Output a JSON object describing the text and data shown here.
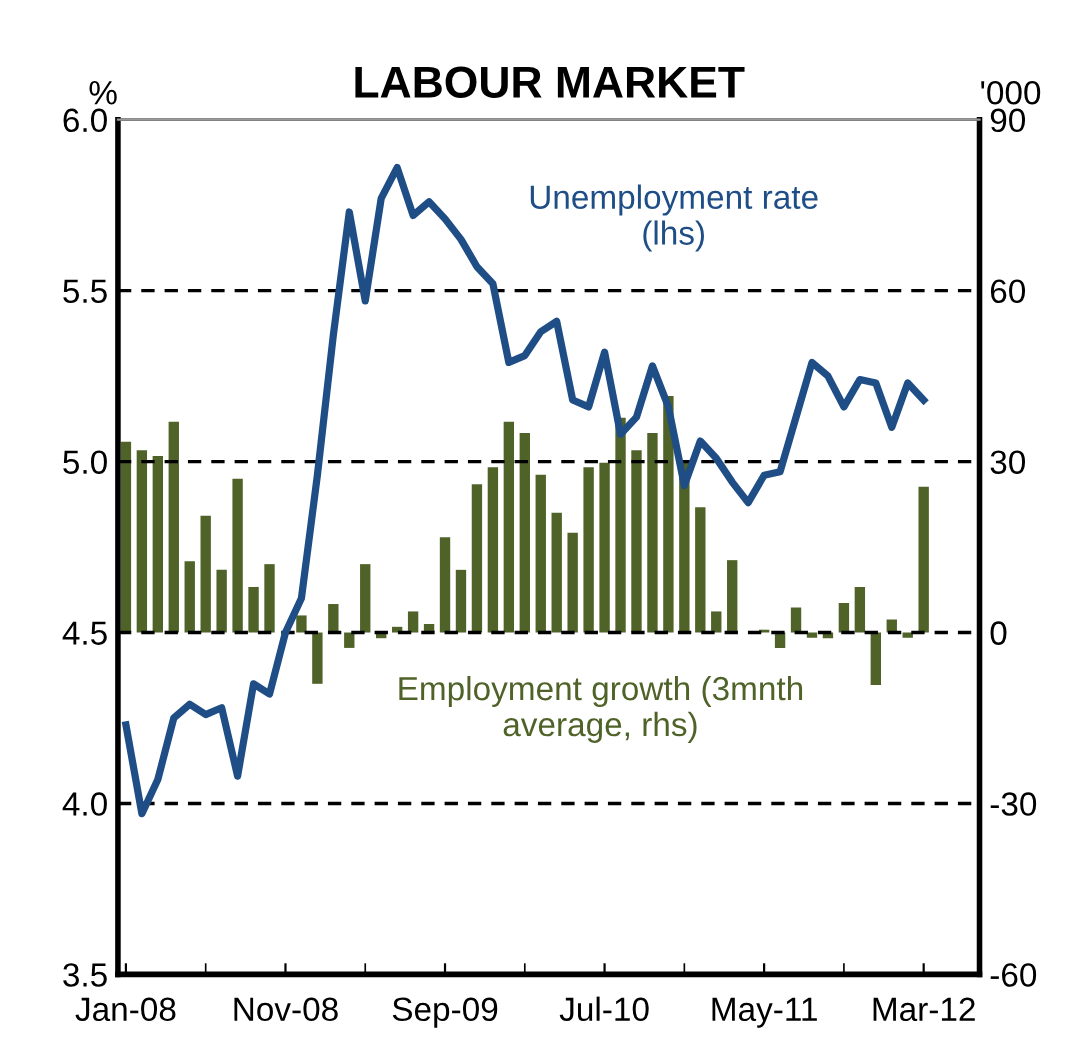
{
  "chart_data": {
    "type": "line",
    "title": "LABOUR MARKET",
    "ylabel": "%",
    "y2label": "'000",
    "categories": [
      "Jan-08",
      null,
      null,
      null,
      null,
      null,
      null,
      null,
      null,
      null,
      "Nov-08",
      null,
      null,
      null,
      null,
      null,
      null,
      null,
      null,
      null,
      "Sep-09",
      null,
      null,
      null,
      null,
      null,
      null,
      null,
      null,
      null,
      "Jul-10",
      null,
      null,
      null,
      null,
      null,
      null,
      null,
      null,
      null,
      "May-11",
      null,
      null,
      null,
      null,
      null,
      null,
      null,
      null,
      null,
      "Mar-12"
    ],
    "series": [
      {
        "name": "Employment growth (3mnth average, rhs)",
        "type": "bar",
        "axis": "y2",
        "color": "#4f6228",
        "values": [
          33.5,
          32,
          31,
          37,
          12.5,
          20.5,
          11,
          27,
          8,
          12,
          0,
          3,
          -9,
          5,
          -2.7,
          12,
          -1,
          1,
          3.7,
          1.5,
          16.7,
          11,
          26,
          29,
          37,
          35,
          27.7,
          21,
          17.5,
          29,
          29.8,
          37.7,
          32,
          35,
          41.5,
          30,
          22,
          3.7,
          12.7,
          0,
          0.5,
          -2.7,
          4.4,
          -0.9,
          -1,
          5.2,
          8,
          -9.2,
          2.3,
          -0.9,
          25.6
        ]
      },
      {
        "name": "Unemployment rate (lhs)",
        "color": "#1f4e86",
        "values": [
          4.23,
          3.97,
          4.07,
          4.25,
          4.29,
          4.26,
          4.28,
          4.08,
          4.35,
          4.32,
          4.5,
          4.6,
          4.96,
          5.37,
          5.73,
          5.47,
          5.77,
          5.86,
          5.72,
          5.76,
          5.71,
          5.65,
          5.57,
          5.52,
          5.29,
          5.31,
          5.38,
          5.41,
          5.18,
          5.16,
          5.32,
          5.08,
          5.13,
          5.28,
          5.16,
          4.93,
          5.06,
          5.01,
          4.94,
          4.88,
          4.96,
          4.97,
          5.13,
          5.29,
          5.25,
          5.16,
          5.24,
          5.23,
          5.1,
          5.23,
          5.18
        ]
      }
    ],
    "ylim": [
      3.5,
      6.0
    ],
    "yticks": [
      {
        "value": 3.5,
        "label": "3.5"
      },
      {
        "value": 4.0,
        "label": "4.0"
      },
      {
        "value": 4.5,
        "label": "4.5"
      },
      {
        "value": 5.0,
        "label": "5.0"
      },
      {
        "value": 5.5,
        "label": "5.5"
      },
      {
        "value": 6.0,
        "label": "6.0"
      }
    ],
    "y2lim": [
      -60,
      90
    ],
    "y2ticks": [
      -60,
      -30,
      0,
      30,
      60,
      90
    ],
    "grid": "y",
    "legend": false,
    "marker": "none",
    "line_style": "solid"
  }
}
